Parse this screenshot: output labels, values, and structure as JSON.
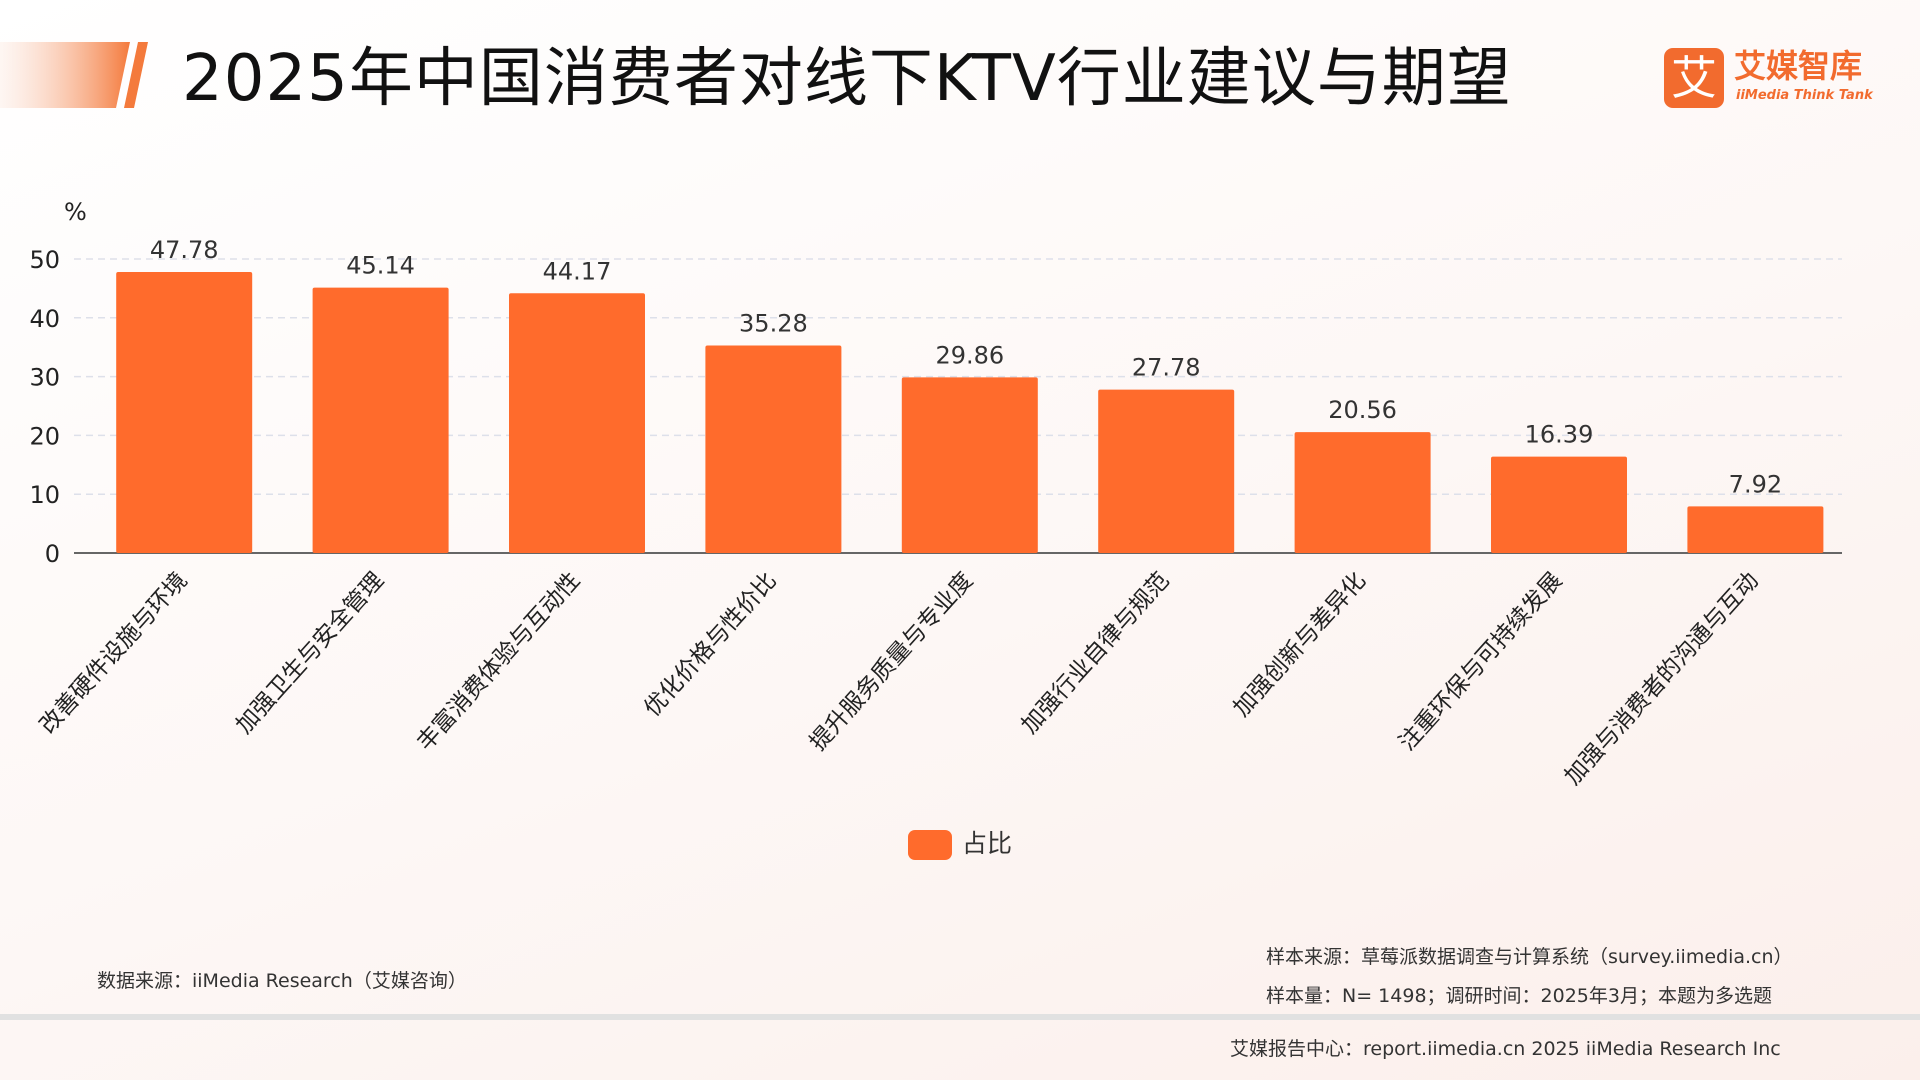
{
  "title": "2025年中国消费者对线下KTV行业建议与期望",
  "brand": {
    "mark": "艾",
    "name": "艾媒智库",
    "sub": "iiMedia Think Tank",
    "accent": "#f26b2e"
  },
  "chart_data": {
    "type": "bar",
    "title": "",
    "xlabel": "",
    "ylabel": "%",
    "ylim": [
      0,
      50
    ],
    "yticks": [
      0,
      10,
      20,
      30,
      40,
      50
    ],
    "grid": true,
    "legend_position": "bottom-center",
    "bar_color": "#ff6b2c",
    "categories": [
      "改善硬件设施与环境",
      "加强卫生与安全管理",
      "丰富消费体验与互动性",
      "优化价格与性价比",
      "提升服务质量与专业度",
      "加强行业自律与规范",
      "加强创新与差异化",
      "注重环保与可持续发展",
      "加强与消费者的沟通与互动"
    ],
    "series": [
      {
        "name": "占比",
        "values": [
          47.78,
          45.14,
          44.17,
          35.28,
          29.86,
          27.78,
          20.56,
          16.39,
          7.92
        ]
      }
    ]
  },
  "legend": {
    "label": "占比"
  },
  "notes": {
    "source": "数据来源：iiMedia Research（艾媒咨询）",
    "sample_source": "样本来源：草莓派数据调查与计算系统（survey.iimedia.cn）",
    "sample_size": "样本量：N= 1498；调研时间：2025年3月；本题为多选题"
  },
  "footer": "艾媒报告中心：report.iimedia.cn    2025 iiMedia Research Inc"
}
